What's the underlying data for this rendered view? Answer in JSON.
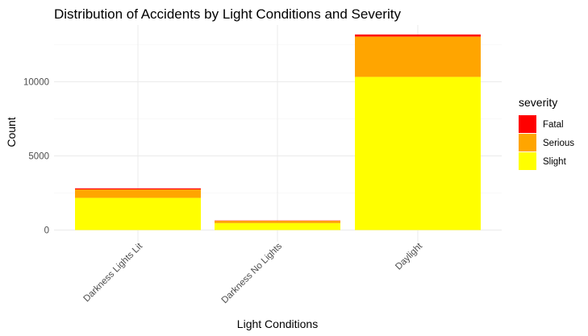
{
  "chart_data": {
    "type": "bar",
    "stacked": true,
    "title": "Distribution of Accidents by Light Conditions and Severity",
    "xlabel": "Light Conditions",
    "ylabel": "Count",
    "categories": [
      "Darkness Lights Lit",
      "Darkness No Lights",
      "Daylight"
    ],
    "series": [
      {
        "name": "Slight",
        "color": "#FFFF00",
        "values": [
          2170,
          470,
          10330
        ]
      },
      {
        "name": "Serious",
        "color": "#FFA500",
        "values": [
          570,
          150,
          2720
        ]
      },
      {
        "name": "Fatal",
        "color": "#FF0000",
        "values": [
          70,
          20,
          140
        ]
      }
    ],
    "yticks": [
      0,
      5000,
      10000
    ],
    "ylim": [
      0,
      14000
    ],
    "grid": true,
    "legend": {
      "title": "severity",
      "placement": "right",
      "order": [
        "Fatal",
        "Serious",
        "Slight"
      ]
    }
  }
}
